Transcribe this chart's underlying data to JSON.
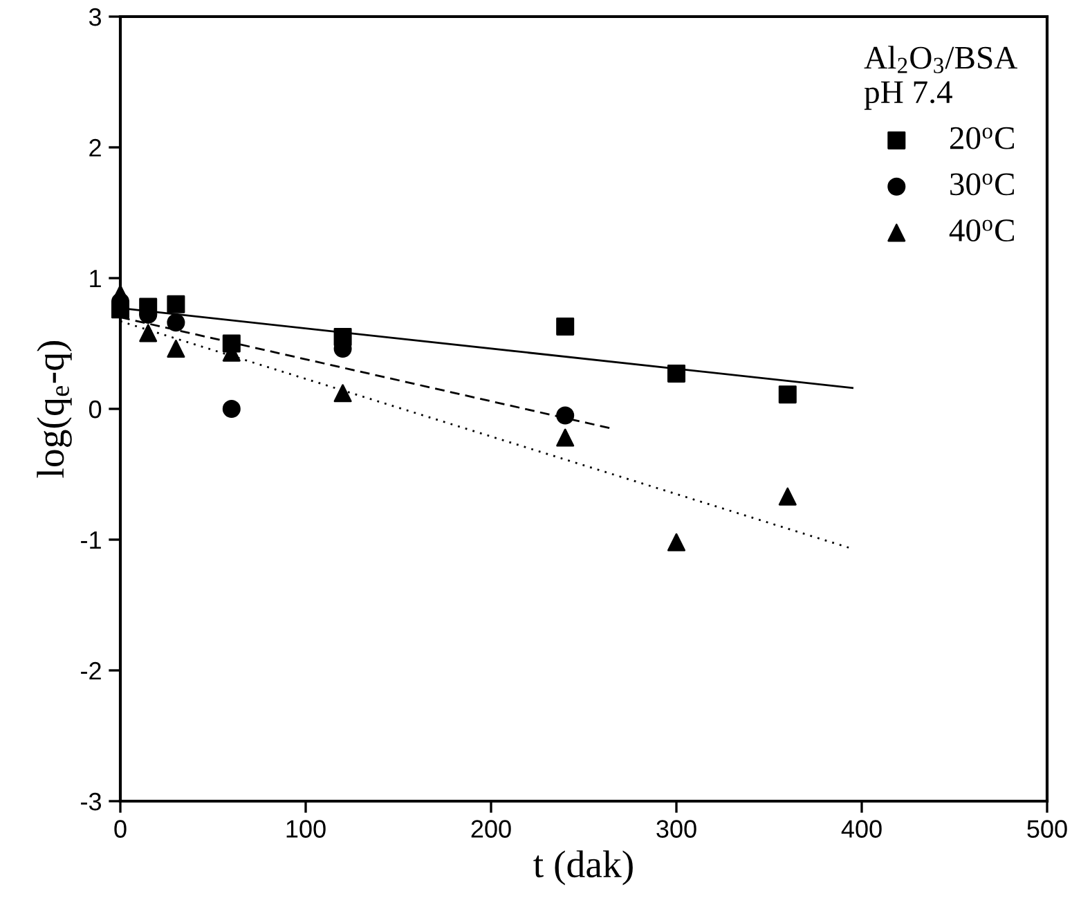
{
  "chart_data": {
    "type": "scatter",
    "xlabel": "t (dak)",
    "ylabel": "log(q$_{e}$-q)",
    "legend_title": "Al$_{2}$O$_{3}$/BSA\npH 7.4",
    "legend": "top right",
    "grid": false,
    "xlim": [
      0,
      500
    ],
    "xticks": [
      0,
      100,
      200,
      300,
      400,
      500
    ],
    "ylim": [
      -3,
      3
    ],
    "yticks": [
      -3,
      -2,
      -1,
      0,
      1,
      2,
      3
    ],
    "series": [
      {
        "name": "20$^{o}$C",
        "color": "#000000",
        "marker": "square",
        "x": [
          0,
          15,
          30,
          60,
          120,
          240,
          300,
          360
        ],
        "values": [
          0.76,
          0.78,
          0.8,
          0.5,
          0.55,
          0.63,
          0.27,
          0.11
        ]
      },
      {
        "name": "30$^{o}$C",
        "color": "#000000",
        "marker": "circle",
        "x": [
          0,
          15,
          30,
          60,
          120,
          240
        ],
        "values": [
          0.82,
          0.72,
          0.66,
          0.0,
          0.46,
          -0.05
        ]
      },
      {
        "name": "40$^{o}$C",
        "color": "#000000",
        "marker": "triangle",
        "x": [
          0,
          15,
          30,
          60,
          120,
          240,
          300,
          360
        ],
        "values": [
          0.88,
          0.58,
          0.46,
          0.43,
          0.12,
          -0.22,
          -1.02,
          -0.67
        ]
      },
      {
        "type": "line",
        "color": "#000000",
        "line_style": "solid",
        "marker": "none",
        "x": [
          0,
          395
        ],
        "values": [
          0.77,
          0.16
        ]
      },
      {
        "type": "line",
        "color": "#000000",
        "line_style": "dashed",
        "marker": "none",
        "x": [
          0,
          265
        ],
        "values": [
          0.7,
          -0.15
        ]
      },
      {
        "type": "line",
        "color": "#000000",
        "line_style": "dotted",
        "marker": "none",
        "x": [
          0,
          395
        ],
        "values": [
          0.67,
          -1.07
        ]
      }
    ]
  }
}
